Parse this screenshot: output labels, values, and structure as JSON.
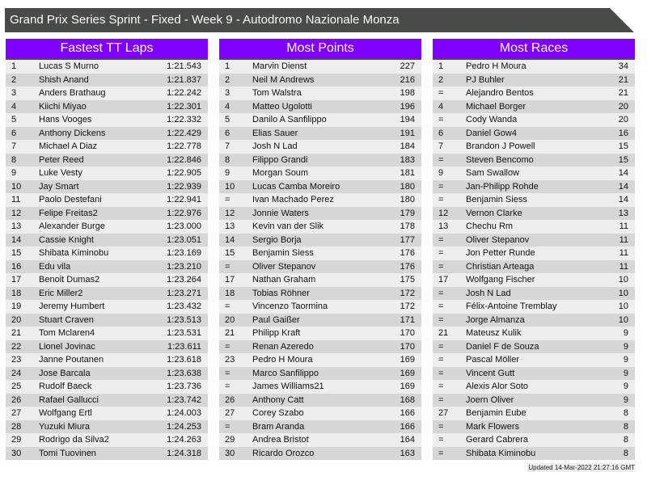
{
  "title": "Grand Prix Series Sprint - Fixed - Week 9 - Autodromo Nazionale Monza",
  "colors": {
    "header": "#8000ff",
    "titlebar": "#4a4a4a",
    "row_light": "#eeeeee",
    "row_dark": "#d6d6d6"
  },
  "boards": [
    {
      "title": "Fastest TT Laps",
      "rows": [
        [
          "1",
          "Lucas S Murno",
          "1:21.543"
        ],
        [
          "2",
          "Shish Anand",
          "1:21.837"
        ],
        [
          "3",
          "Anders Brathaug",
          "1:22.242"
        ],
        [
          "4",
          "Kiichi Miyao",
          "1:22.301"
        ],
        [
          "5",
          "Hans Vooges",
          "1:22.332"
        ],
        [
          "6",
          "Anthony Dickens",
          "1:22.429"
        ],
        [
          "7",
          "Michael A Diaz",
          "1:22.778"
        ],
        [
          "8",
          "Peter Reed",
          "1:22.846"
        ],
        [
          "9",
          "Luke Vesty",
          "1:22.905"
        ],
        [
          "10",
          "Jay Smart",
          "1:22.939"
        ],
        [
          "11",
          "Paolo Destefani",
          "1:22.941"
        ],
        [
          "12",
          "Felipe Freitas2",
          "1:22.976"
        ],
        [
          "13",
          "Alexander Burge",
          "1:23.000"
        ],
        [
          "14",
          "Cassie Knight",
          "1:23.051"
        ],
        [
          "15",
          "Shibata Kiminobu",
          "1:23.169"
        ],
        [
          "16",
          "Edu vila",
          "1:23.210"
        ],
        [
          "17",
          "Benoit Dumas2",
          "1:23.264"
        ],
        [
          "18",
          "Eric Miller2",
          "1:23.271"
        ],
        [
          "19",
          "Jeremy Humbert",
          "1:23.432"
        ],
        [
          "20",
          "Stuart Craven",
          "1:23.513"
        ],
        [
          "21",
          "Tom Mclaren4",
          "1:23.531"
        ],
        [
          "22",
          "Lionel Jovinac",
          "1:23.611"
        ],
        [
          "23",
          "Janne Poutanen",
          "1:23.618"
        ],
        [
          "24",
          "Jose Barcala",
          "1:23.638"
        ],
        [
          "25",
          "Rudolf Baeck",
          "1:23.736"
        ],
        [
          "26",
          "Rafael Gallucci",
          "1:23.742"
        ],
        [
          "27",
          "Wolfgang Ertl",
          "1:24.003"
        ],
        [
          "28",
          "Yuzuki Miura",
          "1:24.253"
        ],
        [
          "29",
          "Rodrigo da Silva2",
          "1:24.263"
        ],
        [
          "30",
          "Tomi Tuovinen",
          "1:24.318"
        ]
      ]
    },
    {
      "title": "Most Points",
      "rows": [
        [
          "1",
          "Marvin Dienst",
          "227"
        ],
        [
          "2",
          "Neil M Andrews",
          "216"
        ],
        [
          "3",
          "Tom Walstra",
          "198"
        ],
        [
          "4",
          "Matteo Ugolotti",
          "196"
        ],
        [
          "5",
          "Danilo A Sanfilippo",
          "194"
        ],
        [
          "6",
          "Elias Sauer",
          "191"
        ],
        [
          "7",
          "Josh N Lad",
          "184"
        ],
        [
          "8",
          "Filippo Grandi",
          "183"
        ],
        [
          "9",
          "Morgan Soum",
          "181"
        ],
        [
          "10",
          "Lucas Camba Moreiro",
          "180"
        ],
        [
          "=",
          "Ivan Machado Perez",
          "180"
        ],
        [
          "12",
          "Jonnie Waters",
          "179"
        ],
        [
          "13",
          "Kevin van der Slik",
          "178"
        ],
        [
          "14",
          "Sergio Borja",
          "177"
        ],
        [
          "15",
          "Benjamin Siess",
          "176"
        ],
        [
          "=",
          "Oliver Stepanov",
          "176"
        ],
        [
          "17",
          "Nathan Graham",
          "175"
        ],
        [
          "18",
          "Tobias Röhner",
          "172"
        ],
        [
          "=",
          "Vincenzo Taormina",
          "172"
        ],
        [
          "20",
          "Paul Gaißer",
          "171"
        ],
        [
          "21",
          "Philipp Kraft",
          "170"
        ],
        [
          "=",
          "Renan Azeredo",
          "170"
        ],
        [
          "23",
          "Pedro H Moura",
          "169"
        ],
        [
          "=",
          "Marco Sanfilippo",
          "169"
        ],
        [
          "=",
          "James Williams21",
          "169"
        ],
        [
          "26",
          "Anthony Catt",
          "168"
        ],
        [
          "27",
          "Corey Szabo",
          "166"
        ],
        [
          "=",
          "Bram Aranda",
          "166"
        ],
        [
          "29",
          "Andrea Bristot",
          "164"
        ],
        [
          "30",
          "Ricardo Orozco",
          "163"
        ]
      ]
    },
    {
      "title": "Most Races",
      "rows": [
        [
          "1",
          "Pedro H Moura",
          "34"
        ],
        [
          "2",
          "PJ Buhler",
          "21"
        ],
        [
          "=",
          "Alejandro Bentos",
          "21"
        ],
        [
          "4",
          "Michael Borger",
          "20"
        ],
        [
          "=",
          "Cody Wanda",
          "20"
        ],
        [
          "6",
          "Daniel Gow4",
          "16"
        ],
        [
          "7",
          "Brandon J Powell",
          "15"
        ],
        [
          "=",
          "Steven Bencomo",
          "15"
        ],
        [
          "9",
          "Sam Swallow",
          "14"
        ],
        [
          "=",
          "Jan-Philipp Rohde",
          "14"
        ],
        [
          "=",
          "Benjamin Siess",
          "14"
        ],
        [
          "12",
          "Vernon Clarke",
          "13"
        ],
        [
          "13",
          "Chechu Rm",
          "11"
        ],
        [
          "=",
          "Oliver Stepanov",
          "11"
        ],
        [
          "=",
          "Jon Petter Runde",
          "11"
        ],
        [
          "=",
          "Christian Arteaga",
          "11"
        ],
        [
          "17",
          "Wolfgang Fischer",
          "10"
        ],
        [
          "=",
          "Josh N Lad",
          "10"
        ],
        [
          "=",
          "Félix-Antoine Tremblay",
          "10"
        ],
        [
          "=",
          "Jorge Almanza",
          "10"
        ],
        [
          "21",
          "Mateusz Kulik",
          "9"
        ],
        [
          "=",
          "Daniel F de Souza",
          "9"
        ],
        [
          "=",
          "Pascal Möller",
          "9"
        ],
        [
          "=",
          "Vincent Gutt",
          "9"
        ],
        [
          "=",
          "Alexis Alor Soto",
          "9"
        ],
        [
          "=",
          "Joern Oliver",
          "9"
        ],
        [
          "27",
          "Benjamin Eube",
          "8"
        ],
        [
          "=",
          "Mark Flowers",
          "8"
        ],
        [
          "=",
          "Gerard Cabrera",
          "8"
        ],
        [
          "=",
          "Shibata Kiminobu",
          "8"
        ]
      ]
    }
  ],
  "updated": "Updated 14-Mar-2022 21:27:16 GMT"
}
